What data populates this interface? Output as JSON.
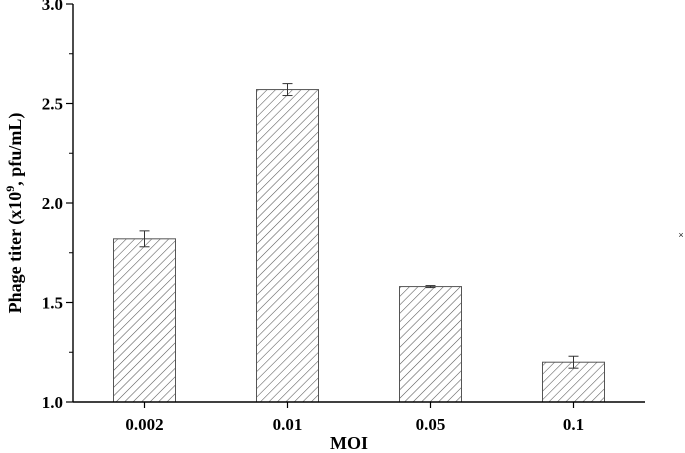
{
  "chart_data": {
    "type": "bar",
    "categories": [
      "0.002",
      "0.01",
      "0.05",
      "0.1"
    ],
    "values": [
      1.82,
      2.57,
      1.58,
      1.2
    ],
    "errors": [
      0.04,
      0.03,
      0.005,
      0.03
    ],
    "xlabel": "MOI",
    "ylabel_main": "Phage titer (x10",
    "ylabel_sup": "9",
    "ylabel_tail": ", pfu/mL)",
    "ylim": [
      1.0,
      3.0
    ],
    "yticks": [
      "1.0",
      "1.5",
      "2.0",
      "2.5",
      "3.0"
    ],
    "grid": false,
    "bar_fill": "hatched diagonal",
    "bar_color": "#555555"
  },
  "stray_mark": "×"
}
